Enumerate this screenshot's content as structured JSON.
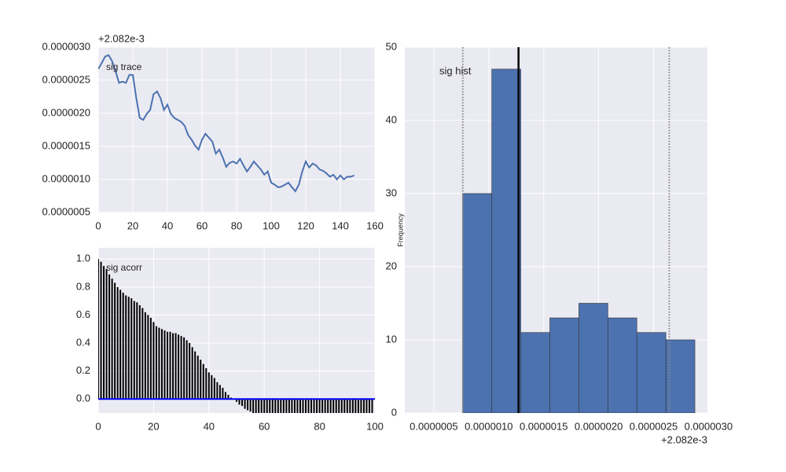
{
  "chart_data": [
    {
      "type": "line",
      "annotation": "sig trace",
      "y_offset_label": "+2.082e-3",
      "x": [
        0,
        2,
        4,
        6,
        8,
        10,
        12,
        14,
        16,
        18,
        20,
        22,
        24,
        26,
        28,
        30,
        32,
        34,
        36,
        38,
        40,
        42,
        44,
        46,
        48,
        50,
        52,
        54,
        56,
        58,
        60,
        62,
        64,
        66,
        68,
        70,
        72,
        74,
        76,
        78,
        80,
        82,
        84,
        86,
        88,
        90,
        92,
        94,
        96,
        98,
        100,
        102,
        104,
        106,
        108,
        110,
        112,
        114,
        116,
        118,
        120,
        122,
        124,
        126,
        128,
        130,
        132,
        134,
        136,
        138,
        140,
        142,
        144,
        146,
        148
      ],
      "values": [
        2.67e-06,
        2.76e-06,
        2.86e-06,
        2.88e-06,
        2.79e-06,
        2.64e-06,
        2.46e-06,
        2.48e-06,
        2.46e-06,
        2.58e-06,
        2.58e-06,
        2.23e-06,
        1.93e-06,
        1.9e-06,
        1.99e-06,
        2.05e-06,
        2.29e-06,
        2.33e-06,
        2.23e-06,
        2.05e-06,
        2.13e-06,
        1.99e-06,
        1.93e-06,
        1.9e-06,
        1.87e-06,
        1.81e-06,
        1.67e-06,
        1.6e-06,
        1.51e-06,
        1.45e-06,
        1.6e-06,
        1.69e-06,
        1.63e-06,
        1.57e-06,
        1.39e-06,
        1.45e-06,
        1.33e-06,
        1.19e-06,
        1.25e-06,
        1.27e-06,
        1.24e-06,
        1.31e-06,
        1.21e-06,
        1.12e-06,
        1.19e-06,
        1.27e-06,
        1.21e-06,
        1.15e-06,
        1.07e-06,
        1.12e-06,
        9.5e-07,
        9.2e-07,
        8.8e-07,
        8.9e-07,
        9.2e-07,
        9.5e-07,
        8.8e-07,
        8.2e-07,
        9.2e-07,
        1.12e-06,
        1.27e-06,
        1.18e-06,
        1.24e-06,
        1.21e-06,
        1.15e-06,
        1.13e-06,
        1.09e-06,
        1.04e-06,
        1.07e-06,
        1e-06,
        1.06e-06,
        1e-06,
        1.04e-06,
        1.04e-06,
        1.06e-06
      ],
      "color": "#4c72b0",
      "xlim": [
        0,
        160
      ],
      "xticks": [
        0,
        20,
        40,
        60,
        80,
        100,
        120,
        140,
        160
      ],
      "ylim": [
        5e-07,
        3e-06
      ],
      "yticks": [
        {
          "value": 5e-07,
          "label": "0.0000005"
        },
        {
          "value": 1e-06,
          "label": "0.0000010"
        },
        {
          "value": 1.5e-06,
          "label": "0.0000015"
        },
        {
          "value": 2e-06,
          "label": "0.0000020"
        },
        {
          "value": 2.5e-06,
          "label": "0.0000025"
        },
        {
          "value": 3e-06,
          "label": "0.0000030"
        }
      ],
      "grid": true
    },
    {
      "type": "bar",
      "annotation": "sig acorr",
      "x": [
        0,
        1,
        2,
        3,
        4,
        5,
        6,
        7,
        8,
        9,
        10,
        11,
        12,
        13,
        14,
        15,
        16,
        17,
        18,
        19,
        20,
        21,
        22,
        23,
        24,
        25,
        26,
        27,
        28,
        29,
        30,
        31,
        32,
        33,
        34,
        35,
        36,
        37,
        38,
        39,
        40,
        41,
        42,
        43,
        44,
        45,
        46,
        47,
        48,
        49,
        50,
        51,
        52,
        53,
        54,
        55,
        56,
        57,
        58,
        59,
        60,
        61,
        62,
        63,
        64,
        65,
        66,
        67,
        68,
        69,
        70,
        71,
        72,
        73,
        74,
        75,
        76,
        77,
        78,
        79,
        80,
        81,
        82,
        83,
        84,
        85,
        86,
        87,
        88,
        89,
        90,
        91,
        92,
        93,
        94,
        95,
        96,
        97,
        98,
        99
      ],
      "values": [
        1.0,
        0.98,
        0.95,
        0.93,
        0.89,
        0.86,
        0.83,
        0.8,
        0.78,
        0.76,
        0.74,
        0.73,
        0.72,
        0.7,
        0.69,
        0.67,
        0.65,
        0.62,
        0.6,
        0.58,
        0.55,
        0.52,
        0.51,
        0.5,
        0.49,
        0.48,
        0.48,
        0.47,
        0.47,
        0.46,
        0.45,
        0.44,
        0.42,
        0.4,
        0.37,
        0.34,
        0.31,
        0.28,
        0.25,
        0.22,
        0.19,
        0.17,
        0.15,
        0.12,
        0.1,
        0.08,
        0.05,
        0.03,
        0.01,
        0.0,
        -0.02,
        -0.04,
        -0.05,
        -0.07,
        -0.08,
        -0.09,
        -0.1,
        -0.1,
        -0.1,
        -0.1,
        -0.1,
        -0.1,
        -0.1,
        -0.1,
        -0.1,
        -0.1,
        -0.1,
        -0.1,
        -0.1,
        -0.1,
        -0.1,
        -0.1,
        -0.1,
        -0.1,
        -0.1,
        -0.1,
        -0.1,
        -0.1,
        -0.1,
        -0.1,
        -0.1,
        -0.1,
        -0.1,
        -0.1,
        -0.1,
        -0.1,
        -0.1,
        -0.1,
        -0.1,
        -0.1,
        -0.1,
        -0.1,
        -0.1,
        -0.1,
        -0.1,
        -0.1,
        -0.1,
        -0.1,
        -0.1,
        -0.1
      ],
      "color": "#000000",
      "baseline_color": "#0000ff",
      "xlim": [
        0,
        100
      ],
      "xticks": [
        0,
        20,
        40,
        60,
        80,
        100
      ],
      "ylim": [
        -0.1,
        1.08
      ],
      "yticks": [
        {
          "value": 0,
          "label": "0.0"
        },
        0.2,
        0.4,
        0.6,
        0.8,
        {
          "value": 1,
          "label": "1.0"
        }
      ],
      "grid": true
    },
    {
      "type": "histogram",
      "annotation": "sig hist",
      "ylabel": "Frequency",
      "x_offset_label": "+2.082e-3",
      "bins": [
        7.64e-07,
        1.028e-06,
        1.292e-06,
        1.556e-06,
        1.82e-06,
        2.084e-06,
        2.348e-06,
        2.612e-06,
        2.876e-06
      ],
      "values": [
        30,
        47,
        11,
        13,
        15,
        13,
        11,
        10
      ],
      "color": "#4c72b0",
      "vlines": [
        {
          "value": 7.64e-07,
          "style": "dotted",
          "color": "#888888"
        },
        {
          "value": 1.271e-06,
          "style": "solid",
          "color": "#000000"
        },
        {
          "value": 2.643e-06,
          "style": "dotted",
          "color": "#888888"
        }
      ],
      "xlim": [
        2.36e-07,
        2.99e-06
      ],
      "xticks": [
        {
          "value": 5e-07,
          "label": "0.0000005"
        },
        {
          "value": 1e-06,
          "label": "0.0000010"
        },
        {
          "value": 1.5e-06,
          "label": "0.0000015"
        },
        {
          "value": 2e-06,
          "label": "0.0000020"
        },
        {
          "value": 2.5e-06,
          "label": "0.0000025"
        },
        {
          "value": 3e-06,
          "label": "0.0000030"
        }
      ],
      "ylim": [
        0,
        50
      ],
      "yticks": [
        0,
        10,
        20,
        30,
        40,
        50
      ],
      "grid": true
    }
  ]
}
